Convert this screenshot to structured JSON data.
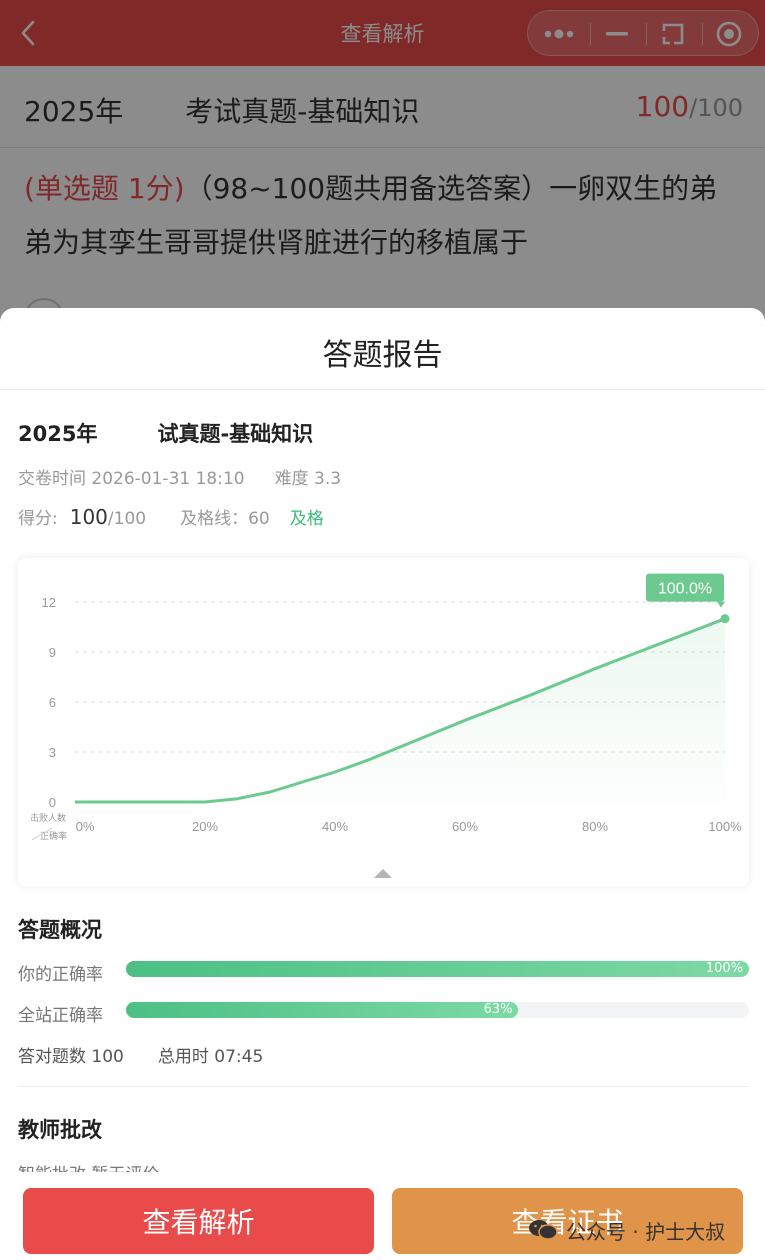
{
  "navbar": {
    "title": "查看解析",
    "background": "#e94b4b"
  },
  "question_page": {
    "exam_title": "2025年",
    "exam_title_suffix": "考试真题-基础知识",
    "score": "100",
    "score_total": "/100",
    "question_type": "(单选题 1分)",
    "question_text": "（98~100题共用备选答案）一卵双生的弟弟为其孪生哥哥提供肾脏进行的移植属于"
  },
  "report": {
    "sheet_title": "答题报告",
    "exam_title_prefix": "2025年",
    "exam_title_suffix": "试真题-基础知识",
    "submit_time_label": "交卷时间 2026-01-31 18:10",
    "difficulty_label": "难度 3.3",
    "score_label": "得分:",
    "score_value": "100",
    "score_total": "/100",
    "pass_line_label": "及格线：60",
    "pass_status": "及格"
  },
  "chart_data": {
    "type": "area",
    "x_label_top": "击败人数",
    "x_label_bottom": "正确率",
    "y_ticks": [
      "0",
      "3",
      "6",
      "9",
      "12"
    ],
    "x_ticks": [
      "0%",
      "20%",
      "40%",
      "60%",
      "80%",
      "100%"
    ],
    "ylim": [
      0,
      12
    ],
    "xlim": [
      0,
      100
    ],
    "x": [
      0,
      20,
      25,
      30,
      35,
      40,
      45,
      50,
      60,
      70,
      80,
      90,
      100
    ],
    "y": [
      0,
      0,
      0.2,
      0.6,
      1.2,
      1.8,
      2.5,
      3.3,
      4.9,
      6.4,
      8.0,
      9.5,
      11.0
    ],
    "highlight_label": "100.0%",
    "grid": true,
    "color": "#6cc98f"
  },
  "overview": {
    "title": "答题概况",
    "your_rate_label": "你的正确率",
    "your_rate_value": 100,
    "your_rate_text": "100%",
    "site_rate_label": "全站正确率",
    "site_rate_value": 63,
    "site_rate_text": "63%",
    "correct_count_label": "答对题数 100",
    "total_time_label": "总用时 07:45"
  },
  "teacher": {
    "title": "教师批改",
    "subtitle": "智能批改 暂无评价"
  },
  "buttons": {
    "analysis_label": "查看解析",
    "certificate_label": "查看证书"
  },
  "watermark": {
    "text": "公众号 · 护士大叔"
  }
}
